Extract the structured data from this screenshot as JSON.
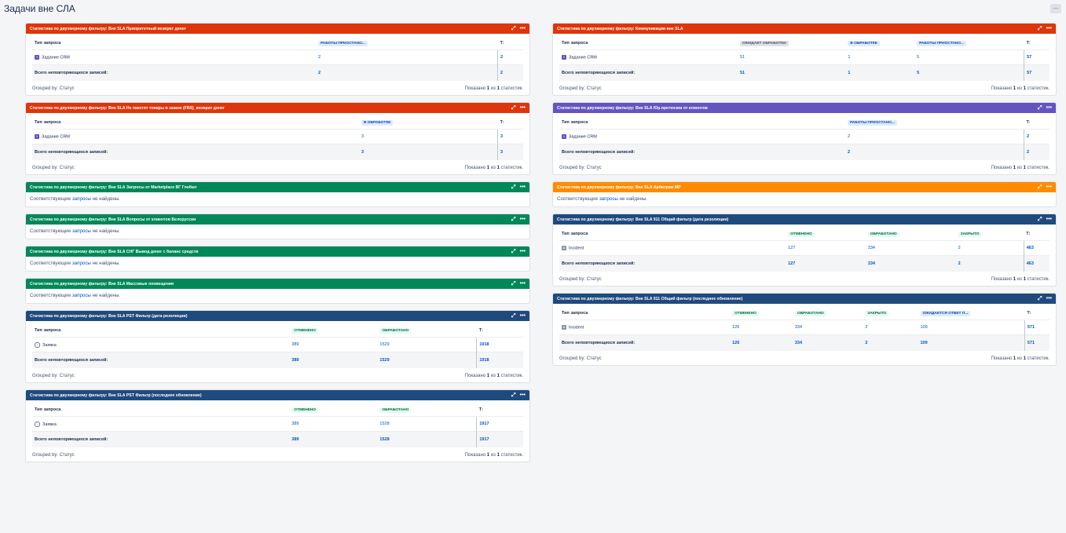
{
  "page": {
    "title": "Задачи вне СЛА",
    "menu": "..."
  },
  "common": {
    "col_type": "Тип запроса",
    "col_total": "Т:",
    "total_label": "Всего неповторяющихся записей:",
    "grouped_by": "Grouped by: Статус",
    "shown_prefix": "Показано",
    "shown_mid": "из",
    "shown_suffix": "статистик.",
    "shown_n": "1",
    "empty_prefix": "Соответствующие",
    "empty_link": "запросы",
    "empty_suffix": "не найдены.",
    "expand": "⤢",
    "more": "•••"
  },
  "colors": {
    "red": "#de350b",
    "purple": "#6554c0",
    "green": "#00875a",
    "orange": "#ff8b00",
    "navy": "#1e4a7e"
  },
  "left": {
    "g1": {
      "title": "Статистика по двухмерному фильтру: Вне SLA Приоритетный возврат денег",
      "cols": [
        "РАБОТЫ ПРИОСТАНО..."
      ],
      "row": {
        "type": "Задание CRM",
        "icon": "crm-icon",
        "vals": [
          "2"
        ],
        "total": "2"
      },
      "totals": {
        "vals": [
          "2"
        ],
        "total": "2"
      }
    },
    "g2": {
      "title": "Статистика по двухмерному фильтру: Вне SLA Не пакетят товары в заказе (FBS)_возврат денег",
      "cols": [
        "В ОБРАБОТКЕ"
      ],
      "row": {
        "type": "Задание CRM",
        "icon": "crm-icon",
        "vals": [
          "3"
        ],
        "total": "3"
      },
      "totals": {
        "vals": [
          "3"
        ],
        "total": "3"
      }
    },
    "g3": {
      "title": "Статистика по двухмерному фильтру: Вне SLA Запросы от Marketplace ВГ Глобал"
    },
    "g4": {
      "title": "Статистика по двухмерному фильтру: Вне SLA Вопросы от клиентов Белоруссии"
    },
    "g5": {
      "title": "Статистика по двухмерному фильтру: Вне SLA СНГ Вывод денег с баланс средств"
    },
    "g6": {
      "title": "Статистика по двухмерному фильтру: Вне SLA Массовые оповещения"
    },
    "g7": {
      "title": "Статистика по двухмерному фильтру: Вне SLA PST Фильтр (дата резолюции)",
      "cols": [
        "ОТМЕНЕНО",
        "ОБРАБОТАНО"
      ],
      "row": {
        "type": "Заявка",
        "icon": "request-icon",
        "vals": [
          "389",
          "1529"
        ],
        "total": "1918"
      },
      "totals": {
        "vals": [
          "389",
          "1529"
        ],
        "total": "1918"
      }
    },
    "g8": {
      "title": "Статистика по двухмерному фильтру: Вне SLA PST Фильтр (последнее обновление)",
      "cols": [
        "ОТМЕНЕНО",
        "ОБРАБОТАНО"
      ],
      "row": {
        "type": "Заявка",
        "icon": "request-icon",
        "vals": [
          "389",
          "1528"
        ],
        "total": "1917"
      },
      "totals": {
        "vals": [
          "389",
          "1528"
        ],
        "total": "1917"
      }
    }
  },
  "right": {
    "g1": {
      "title": "Статистика по двухмерному фильтру: Коммуникации вне SLA",
      "cols": [
        "ОЖИДАЕТ ОБРАБОТКИ",
        "В ОБРАБОТКЕ",
        "РАБОТЫ ПРИОСТАНО..."
      ],
      "row": {
        "type": "Задание CRM",
        "icon": "crm-icon",
        "vals": [
          "51",
          "1",
          "5"
        ],
        "total": "57"
      },
      "totals": {
        "vals": [
          "51",
          "1",
          "5"
        ],
        "total": "57"
      }
    },
    "g2": {
      "title": "Статистика по двухмерному фильтру: Вне SLA Юр.претензии от клиентов",
      "cols": [
        "РАБОТЫ ПРИОСТАНО..."
      ],
      "row": {
        "type": "Задание CRM",
        "icon": "crm-icon",
        "vals": [
          "2"
        ],
        "total": "2"
      },
      "totals": {
        "vals": [
          "2"
        ],
        "total": "2"
      }
    },
    "g3": {
      "title": "Статистика по двухмерному фильтру: Вне SLA Арбитраж МР"
    },
    "g4": {
      "title": "Статистика по двухмерному фильтру: Вне SLA 911 Общий фильтр (дата резолюции)",
      "cols": [
        "ОТМЕНЕНО",
        "ОБРАБОТАНО",
        "ЗАКРЫТО"
      ],
      "row": {
        "type": "Incident",
        "icon": "incident-icon",
        "vals": [
          "127",
          "334",
          "2"
        ],
        "total": "463"
      },
      "totals": {
        "vals": [
          "127",
          "334",
          "2"
        ],
        "total": "463"
      }
    },
    "g5": {
      "title": "Статистика по двухмерному фильтру: Вне SLA 911 Общий фильтр (последнее обновление)",
      "cols": [
        "ОТМЕНЕНО",
        "ОБРАБОТАНО",
        "ЗАКРЫТО",
        "ОЖИДАЕТСЯ ОТВЕТ П..."
      ],
      "row": {
        "type": "Incident",
        "icon": "incident-icon",
        "vals": [
          "126",
          "334",
          "2",
          "109"
        ],
        "total": "571"
      },
      "totals": {
        "vals": [
          "126",
          "334",
          "2",
          "109"
        ],
        "total": "571"
      }
    }
  }
}
